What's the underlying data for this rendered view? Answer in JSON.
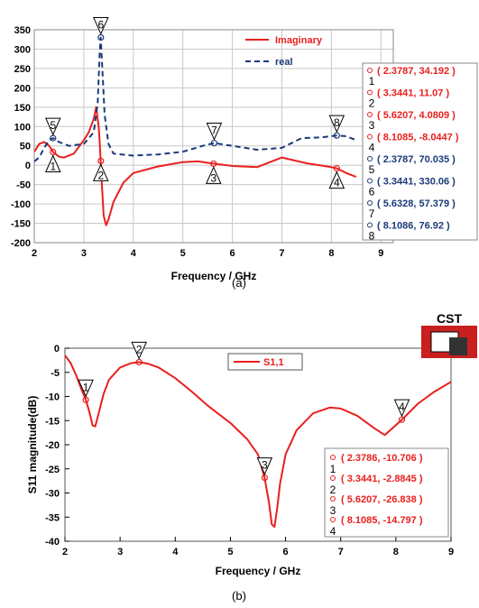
{
  "chart_data": [
    {
      "type": "line",
      "xlabel": "Frequency / GHz",
      "ylabel": "",
      "xlim": [
        2,
        9.25
      ],
      "ylim": [
        -200,
        350
      ],
      "xticks": [
        2,
        3,
        4,
        5,
        6,
        7,
        8,
        9
      ],
      "yticks": [
        350,
        300,
        250,
        200,
        150,
        100,
        50,
        0,
        -50,
        -100,
        -150,
        -200
      ],
      "grid": true,
      "legend": "top-center",
      "caption": "(a)",
      "series": [
        {
          "name": "Imaginary",
          "color": "#e8201e",
          "style": "solid",
          "x": [
            2.0,
            2.1,
            2.2,
            2.3,
            2.38,
            2.5,
            2.6,
            2.8,
            3.0,
            3.1,
            3.2,
            3.25,
            3.3,
            3.32,
            3.34,
            3.36,
            3.4,
            3.45,
            3.5,
            3.6,
            3.8,
            4.0,
            4.5,
            5.0,
            5.3,
            5.62,
            6.0,
            6.5,
            7.0,
            7.5,
            8.0,
            8.11,
            8.3,
            8.5
          ],
          "y": [
            35,
            55,
            60,
            50,
            34.192,
            22,
            20,
            30,
            65,
            85,
            120,
            150,
            100,
            60,
            11.07,
            -40,
            -130,
            -155,
            -140,
            -95,
            -45,
            -20,
            -3,
            8,
            10,
            4.0809,
            -2,
            -5,
            20,
            5,
            -5,
            -8.0447,
            -20,
            -30
          ]
        },
        {
          "name": "real",
          "color": "#1a3a78",
          "style": "dashed",
          "x": [
            2.0,
            2.1,
            2.2,
            2.3,
            2.38,
            2.5,
            2.7,
            3.0,
            3.2,
            3.28,
            3.32,
            3.34,
            3.37,
            3.42,
            3.5,
            3.6,
            4.0,
            4.5,
            5.0,
            5.4,
            5.63,
            6.0,
            6.5,
            7.0,
            7.4,
            7.8,
            8.11,
            8.3,
            8.5
          ],
          "y": [
            10,
            20,
            45,
            65,
            70.035,
            60,
            50,
            55,
            85,
            160,
            290,
            330.06,
            260,
            130,
            55,
            30,
            25,
            28,
            35,
            50,
            57.379,
            50,
            40,
            45,
            70,
            72,
            76.92,
            75,
            65
          ]
        }
      ],
      "markers": [
        {
          "label": "1",
          "x": 2.3787,
          "y": 34.192,
          "series": "Imaginary",
          "text": "( 2.3787, 34.192 )"
        },
        {
          "label": "2",
          "x": 3.3441,
          "y": 11.07,
          "series": "Imaginary",
          "text": "( 3.3441, 11.07 )"
        },
        {
          "label": "3",
          "x": 5.6207,
          "y": 4.0809,
          "series": "Imaginary",
          "text": "( 5.6207, 4.0809 )"
        },
        {
          "label": "4",
          "x": 8.1085,
          "y": -8.0447,
          "series": "Imaginary",
          "text": "( 8.1085, -8.0447 )"
        },
        {
          "label": "5",
          "x": 2.3787,
          "y": 70.035,
          "series": "real",
          "text": "( 2.3787, 70.035 )"
        },
        {
          "label": "6",
          "x": 3.3441,
          "y": 330.06,
          "series": "real",
          "text": "( 3.3441, 330.06 )"
        },
        {
          "label": "7",
          "x": 5.6328,
          "y": 57.379,
          "series": "real",
          "text": "( 5.6328, 57.379 )"
        },
        {
          "label": "8",
          "x": 8.1086,
          "y": 76.92,
          "series": "real",
          "text": "( 8.1086, 76.92 )"
        }
      ]
    },
    {
      "type": "line",
      "xlabel": "Frequency / GHz",
      "ylabel": "S11 magnitude(dB)",
      "xlim": [
        2,
        9
      ],
      "ylim": [
        -40,
        0
      ],
      "xticks": [
        2,
        3,
        4,
        5,
        6,
        7,
        8,
        9
      ],
      "yticks": [
        0,
        -5,
        -10,
        -15,
        -20,
        -25,
        -30,
        -35,
        -40
      ],
      "grid": false,
      "legend": "top-center",
      "caption": "(b)",
      "logo": "CST",
      "series": [
        {
          "name": "S1,1",
          "color": "#e8201e",
          "style": "solid",
          "x": [
            2.0,
            2.1,
            2.2,
            2.3,
            2.38,
            2.45,
            2.5,
            2.55,
            2.6,
            2.7,
            2.8,
            3.0,
            3.2,
            3.34,
            3.5,
            3.7,
            4.0,
            4.3,
            4.6,
            5.0,
            5.3,
            5.5,
            5.62,
            5.7,
            5.75,
            5.8,
            5.85,
            5.9,
            6.0,
            6.2,
            6.5,
            6.8,
            7.0,
            7.3,
            7.6,
            7.8,
            8.11,
            8.4,
            8.7,
            9.0
          ],
          "y": [
            -1.5,
            -3,
            -5.5,
            -8.5,
            -10.706,
            -13.5,
            -16,
            -16.2,
            -14,
            -9.5,
            -6.5,
            -4,
            -3.1,
            -2.8845,
            -3.2,
            -4,
            -6.2,
            -9,
            -12,
            -15.5,
            -18.8,
            -22,
            -26.838,
            -32,
            -36.5,
            -37,
            -33,
            -28,
            -22,
            -17,
            -13.5,
            -12.3,
            -12.5,
            -14,
            -16.5,
            -18,
            -14.797,
            -11.5,
            -9,
            -7
          ]
        }
      ],
      "markers": [
        {
          "label": "1",
          "x": 2.3786,
          "y": -10.706,
          "text": "( 2.3786, -10.706 )"
        },
        {
          "label": "2",
          "x": 3.3441,
          "y": -2.8845,
          "text": "( 3.3441, -2.8845 )"
        },
        {
          "label": "3",
          "x": 5.6207,
          "y": -26.838,
          "text": "( 5.6207, -26.838 )"
        },
        {
          "label": "4",
          "x": 8.1085,
          "y": -14.797,
          "text": "( 8.1085, -14.797 )"
        }
      ]
    }
  ]
}
